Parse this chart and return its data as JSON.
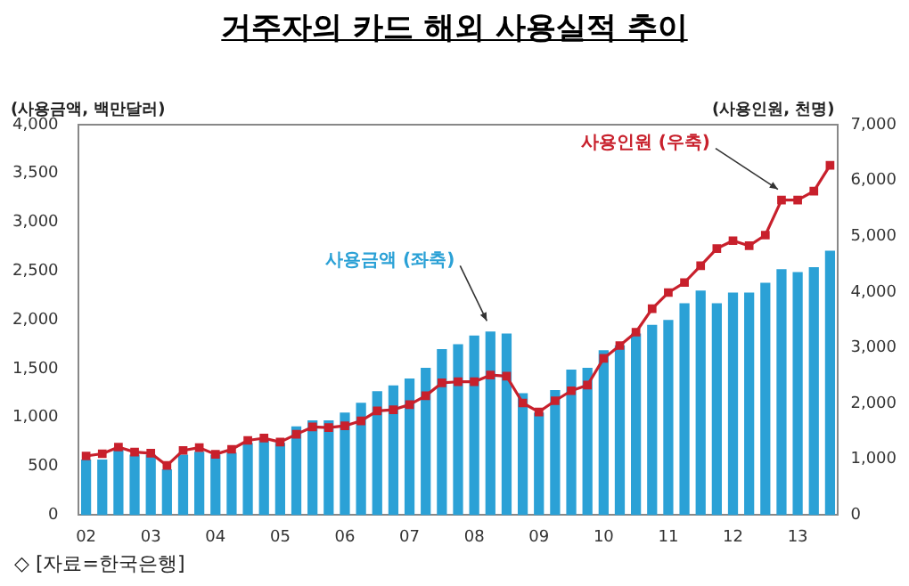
{
  "chart_data": {
    "type": "bar",
    "title": "거주자의 카드 해외 사용실적 추이",
    "ylabel": "(사용금액, 백만달러)",
    "y2label": "(사용인원, 천명)",
    "annotations": [
      "◇ [자료=한국은행]"
    ],
    "categories": [
      "02",
      null,
      null,
      null,
      "03",
      null,
      null,
      null,
      "04",
      null,
      null,
      null,
      "05",
      null,
      null,
      null,
      "06",
      null,
      null,
      null,
      "07",
      null,
      null,
      null,
      "08",
      null,
      null,
      null,
      "09",
      null,
      null,
      null,
      "10",
      null,
      null,
      null,
      "11",
      null,
      null,
      null,
      "12",
      null,
      null,
      null,
      "13",
      null,
      null
    ],
    "series": [
      {
        "name": "사용금액 (좌축)",
        "color": "#2ba1d6",
        "values": [
          570,
          570,
          670,
          620,
          620,
          470,
          620,
          650,
          620,
          640,
          740,
          770,
          740,
          910,
          970,
          970,
          1050,
          1150,
          1270,
          1330,
          1400,
          1510,
          1700,
          1750,
          1840,
          1880,
          1860,
          1250,
          1050,
          1280,
          1490,
          1510,
          1690,
          1740,
          1860,
          1950,
          2000,
          2170,
          2300,
          2170,
          2280,
          2280,
          2380,
          2520,
          2490,
          2540,
          2710
        ]
      },
      {
        "name": "사용인원 (우축)",
        "type": "line",
        "axis": "y2",
        "color": "#c8202c",
        "values": [
          1060,
          1100,
          1220,
          1130,
          1110,
          890,
          1160,
          1210,
          1090,
          1180,
          1340,
          1380,
          1310,
          1450,
          1580,
          1570,
          1600,
          1690,
          1870,
          1890,
          1980,
          2140,
          2370,
          2390,
          2390,
          2510,
          2490,
          2010,
          1850,
          2050,
          2230,
          2330,
          2810,
          3040,
          3280,
          3700,
          3990,
          4170,
          4470,
          4780,
          4920,
          4830,
          5020,
          5650,
          5650,
          5810,
          6270
        ]
      }
    ],
    "ylim": [
      0,
      4000
    ],
    "yticks": [
      {
        "value": 0,
        "label": "0"
      },
      {
        "value": 500,
        "label": "500"
      },
      {
        "value": 1000,
        "label": "1,000"
      },
      {
        "value": 1500,
        "label": "1,500"
      },
      {
        "value": 2000,
        "label": "2,000"
      },
      {
        "value": 2500,
        "label": "2,500"
      },
      {
        "value": 3000,
        "label": "3,000"
      },
      {
        "value": 3500,
        "label": "3,500"
      },
      {
        "value": 4000,
        "label": "4,000"
      }
    ],
    "y2lim": [
      0,
      7000
    ],
    "y2ticks": [
      {
        "value": 0,
        "label": "0"
      },
      {
        "value": 1000,
        "label": "1,000"
      },
      {
        "value": 2000,
        "label": "2,000"
      },
      {
        "value": 3000,
        "label": "3,000"
      },
      {
        "value": 4000,
        "label": "4,000"
      },
      {
        "value": 5000,
        "label": "5,000"
      },
      {
        "value": 6000,
        "label": "6,000"
      },
      {
        "value": 7000,
        "label": "7,000"
      }
    ],
    "grid": false,
    "legend": false,
    "marker": "square",
    "line_style": "solid"
  }
}
